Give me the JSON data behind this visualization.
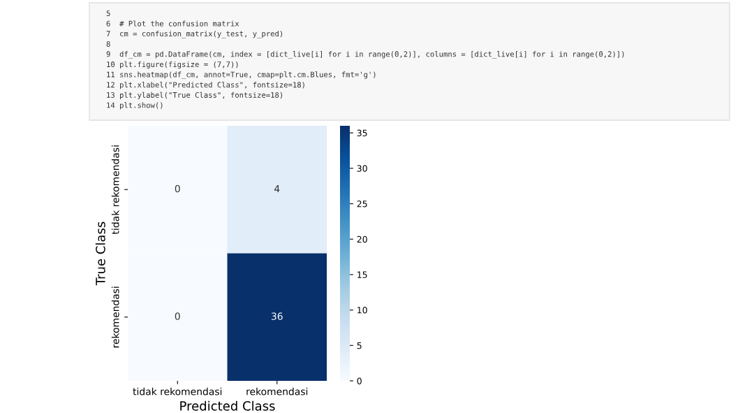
{
  "chart_data": {
    "type": "heatmap",
    "xlabel": "Predicted Class",
    "ylabel": "True Class",
    "categories": [
      "tidak rekomendasi",
      "rekomendasi"
    ],
    "y_categories": [
      "tidak rekomendasi",
      "rekomendasi"
    ],
    "cells": [
      [
        0,
        4
      ],
      [
        0,
        36
      ]
    ],
    "clim": [
      0,
      36
    ],
    "cticks": [
      0,
      5,
      10,
      15,
      20,
      25,
      30,
      35
    ],
    "data_labels": true,
    "annotations": [
      "5",
      "6  # Plot the confusion matrix",
      "7  cm = confusion_matrix(y_test, y_pred)",
      "8",
      "9  df_cm = pd.DataFrame(cm, index = [dict_live[i] for i in range(0,2)], columns = [dict_live[i] for i in range(0,2)])",
      "10 plt.figure(figsize = (7,7))",
      "11 sns.heatmap(df_cm, annot=True, cmap=plt.cm.Blues, fmt='g')",
      "12 plt.xlabel(\"Predicted Class\", fontsize=18)",
      "13 plt.ylabel(\"True Class\", fontsize=18)",
      "14 plt.show()"
    ]
  }
}
